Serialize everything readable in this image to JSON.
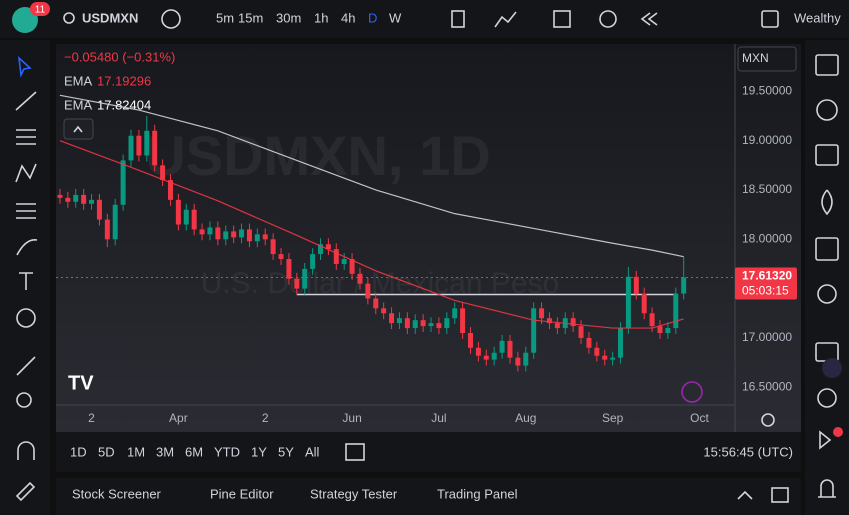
{
  "toolbar": {
    "badge": "11",
    "symbol": "USDMXN",
    "intervals": [
      "5m",
      "15m",
      "30m",
      "1h",
      "4h",
      "D",
      "W"
    ],
    "account": "Wealthy"
  },
  "chart_data": {
    "type": "candlestick",
    "change": "−0.05480 (−0.31%)",
    "currency": "MXN",
    "watermark": [
      "USDMXN, 1D",
      "U.S. Dollar / Mexican Peso"
    ],
    "up_color": "#089981",
    "down_color": "#f23645",
    "x": [
      0,
      1,
      2,
      3,
      4,
      5,
      6,
      7,
      8,
      9,
      10,
      11,
      12,
      13,
      14,
      15,
      16,
      17,
      18,
      19,
      20,
      21,
      22,
      23,
      24,
      25,
      26,
      27,
      28,
      29,
      30,
      31,
      32,
      33,
      34,
      35,
      36,
      37,
      38,
      39,
      40,
      41,
      42,
      43,
      44,
      45,
      46,
      47,
      48,
      49,
      50,
      51,
      52,
      53,
      54,
      55,
      56,
      57,
      58,
      59,
      60,
      61,
      62,
      63,
      64,
      65,
      66,
      67,
      68,
      69,
      70,
      71,
      72,
      73,
      74,
      75,
      76,
      77,
      78,
      79
    ],
    "open": [
      18.45,
      18.42,
      18.38,
      18.45,
      18.36,
      18.4,
      18.2,
      18.0,
      18.35,
      18.8,
      19.05,
      18.85,
      19.1,
      18.75,
      18.6,
      18.4,
      18.15,
      18.3,
      18.1,
      18.05,
      18.12,
      18.0,
      18.08,
      18.02,
      18.1,
      17.98,
      18.05,
      18.0,
      17.85,
      17.8,
      17.6,
      17.5,
      17.7,
      17.85,
      17.95,
      17.9,
      17.75,
      17.8,
      17.65,
      17.55,
      17.4,
      17.3,
      17.25,
      17.15,
      17.2,
      17.1,
      17.18,
      17.12,
      17.15,
      17.1,
      17.2,
      17.3,
      17.05,
      16.9,
      16.82,
      16.78,
      16.85,
      16.97,
      16.8,
      16.72,
      16.85,
      17.3,
      17.2,
      17.15,
      17.1,
      17.2,
      17.12,
      17.0,
      16.9,
      16.82,
      16.78,
      16.8,
      17.1,
      17.62,
      17.45,
      17.25,
      17.12,
      17.05,
      17.1,
      17.45
    ],
    "high": [
      18.51,
      18.48,
      18.51,
      18.51,
      18.46,
      18.46,
      18.26,
      18.41,
      18.86,
      19.11,
      19.11,
      19.25,
      19.16,
      18.81,
      18.66,
      18.46,
      18.36,
      18.36,
      18.16,
      18.18,
      18.18,
      18.14,
      18.14,
      18.16,
      18.16,
      18.11,
      18.11,
      18.06,
      17.91,
      17.86,
      17.66,
      17.76,
      17.91,
      18.01,
      18.01,
      17.96,
      17.86,
      17.86,
      17.71,
      17.61,
      17.46,
      17.36,
      17.31,
      17.26,
      17.26,
      17.24,
      17.24,
      17.21,
      17.21,
      17.26,
      17.36,
      17.36,
      17.11,
      16.96,
      16.88,
      16.91,
      17.03,
      17.03,
      16.86,
      16.91,
      17.36,
      17.36,
      17.26,
      17.21,
      17.26,
      17.26,
      17.18,
      17.06,
      16.96,
      16.88,
      16.86,
      17.16,
      17.72,
      17.68,
      17.51,
      17.31,
      17.18,
      17.16,
      17.51,
      17.82
    ],
    "low": [
      18.36,
      18.32,
      18.32,
      18.3,
      18.3,
      18.14,
      17.92,
      17.94,
      18.29,
      18.74,
      18.79,
      18.79,
      18.69,
      18.54,
      18.34,
      18.09,
      18.09,
      18.04,
      17.99,
      17.99,
      17.94,
      17.94,
      17.96,
      17.96,
      17.92,
      17.92,
      17.94,
      17.79,
      17.74,
      17.54,
      17.44,
      17.44,
      17.64,
      17.79,
      17.84,
      17.69,
      17.69,
      17.59,
      17.49,
      17.34,
      17.24,
      17.19,
      17.09,
      17.09,
      17.04,
      17.04,
      17.06,
      17.06,
      17.04,
      17.04,
      17.14,
      16.99,
      16.84,
      16.76,
      16.72,
      16.72,
      16.79,
      16.74,
      16.66,
      16.66,
      16.79,
      17.14,
      17.09,
      17.04,
      17.04,
      17.06,
      16.94,
      16.84,
      16.76,
      16.72,
      16.72,
      16.74,
      17.04,
      17.39,
      17.19,
      17.06,
      16.99,
      16.99,
      17.04,
      17.39
    ],
    "close": [
      18.42,
      18.38,
      18.45,
      18.36,
      18.4,
      18.2,
      18.0,
      18.35,
      18.8,
      19.05,
      18.85,
      19.1,
      18.75,
      18.6,
      18.4,
      18.15,
      18.3,
      18.1,
      18.05,
      18.12,
      18.0,
      18.08,
      18.02,
      18.1,
      17.98,
      18.05,
      18.0,
      17.85,
      17.8,
      17.6,
      17.5,
      17.7,
      17.85,
      17.95,
      17.9,
      17.75,
      17.8,
      17.65,
      17.55,
      17.4,
      17.3,
      17.25,
      17.15,
      17.2,
      17.1,
      17.18,
      17.12,
      17.15,
      17.1,
      17.2,
      17.3,
      17.05,
      16.9,
      16.82,
      16.78,
      16.85,
      16.97,
      16.8,
      16.72,
      16.85,
      17.3,
      17.2,
      17.15,
      17.1,
      17.2,
      17.12,
      17.0,
      16.9,
      16.82,
      16.78,
      16.8,
      17.1,
      17.62,
      17.45,
      17.25,
      17.12,
      17.05,
      17.1,
      17.45,
      17.6132
    ],
    "lines": [
      {
        "name": "EMA",
        "color": "#f23645",
        "x": [
          0,
          10,
          20,
          30,
          40,
          50,
          60,
          70,
          75,
          79
        ],
        "values": [
          19.0,
          18.7,
          18.39,
          18.04,
          17.68,
          17.38,
          17.18,
          17.1,
          17.1,
          17.19296
        ]
      },
      {
        "name": "EMA",
        "color": "#d1d4dc",
        "x": [
          0,
          10,
          20,
          30,
          40,
          50,
          60,
          70,
          75,
          79
        ],
        "values": [
          19.46,
          19.31,
          19.1,
          18.8,
          18.5,
          18.26,
          18.11,
          17.96,
          17.89,
          17.82404
        ]
      }
    ],
    "support": {
      "value": 17.44,
      "x": [
        30,
        78
      ]
    },
    "last_price": {
      "value": 17.6132,
      "label": "17.61320"
    },
    "countdown": "05:03:15",
    "xlim": [
      -0.5,
      85.5
    ],
    "ylim": [
      16.32,
      19.98
    ],
    "xticks": [
      {
        "value": 4,
        "label": "2"
      },
      {
        "value": 15,
        "label": "Apr"
      },
      {
        "value": 26,
        "label": "2"
      },
      {
        "value": 37,
        "label": "Jun"
      },
      {
        "value": 48,
        "label": "Jul"
      },
      {
        "value": 59,
        "label": "Aug"
      },
      {
        "value": 70,
        "label": "Sep"
      },
      {
        "value": 81,
        "label": "Oct"
      }
    ],
    "yticks": [
      {
        "value": 19.5,
        "label": "19.50000"
      },
      {
        "value": 19,
        "label": "19.00000"
      },
      {
        "value": 18.5,
        "label": "18.50000"
      },
      {
        "value": 18,
        "label": "18.00000"
      },
      {
        "value": 17,
        "label": "17.00000"
      },
      {
        "value": 16.5,
        "label": "16.50000"
      }
    ],
    "grid": false
  },
  "range_bar": {
    "ranges": [
      "1D",
      "5D",
      "1M",
      "3M",
      "6M",
      "YTD",
      "1Y",
      "5Y",
      "All"
    ],
    "time": "15:56:45 (UTC)"
  },
  "panels": [
    "Stock Screener",
    "Pine Editor",
    "Strategy Tester",
    "Trading Panel"
  ]
}
